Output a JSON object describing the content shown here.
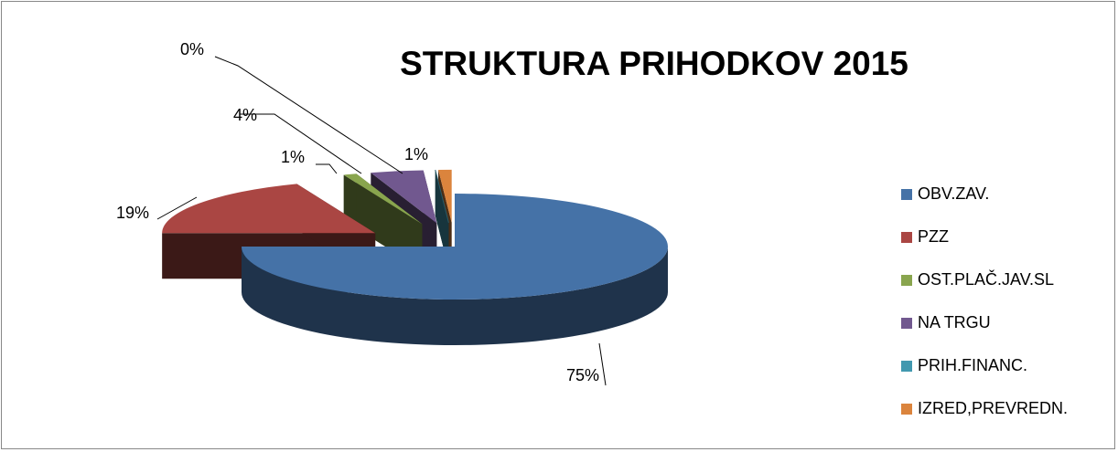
{
  "chart_data": {
    "type": "pie3d",
    "title": "STRUKTURA PRIHODKOV 2015",
    "categories": [
      "OBV.ZAV.",
      "PZZ",
      "OST.PLAČ.JAV.SL",
      "NA TRGU",
      "PRIH.FINANC.",
      "IZRED,PREVREDN."
    ],
    "values": [
      75,
      19,
      1,
      4,
      0,
      1
    ],
    "value_labels": [
      "75%",
      "19%",
      "1%",
      "4%",
      "0%",
      "1%"
    ],
    "colors": [
      "#4572a7",
      "#aa4643",
      "#89a54e",
      "#71588f",
      "#4198af",
      "#db843d"
    ],
    "legend": "right"
  }
}
